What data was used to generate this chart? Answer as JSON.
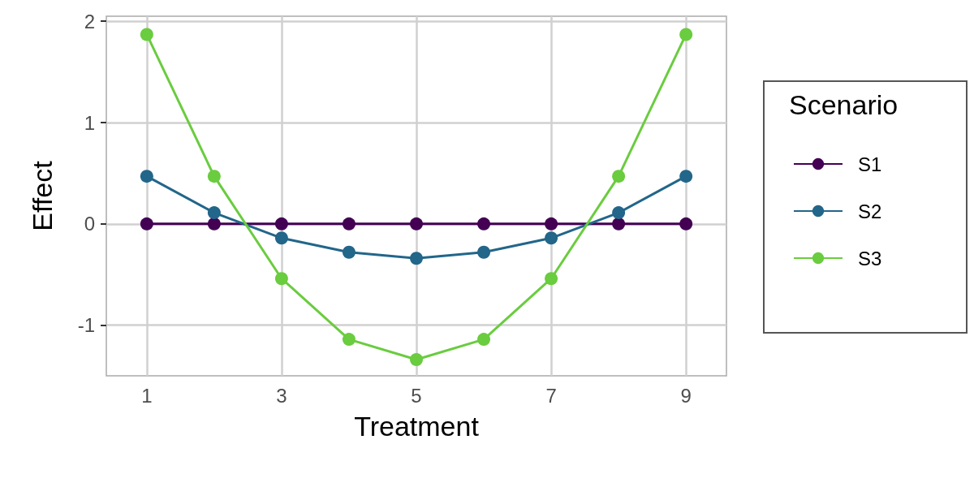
{
  "chart_data": {
    "type": "line",
    "xlabel": "Treatment",
    "ylabel": "Effect",
    "legend_title": "Scenario",
    "legend": "right",
    "grid": true,
    "marker": "circle",
    "line_style": "solid",
    "x": [
      1,
      2,
      3,
      4,
      5,
      6,
      7,
      8,
      9
    ],
    "xlim": [
      0.4,
      9.6
    ],
    "xticks": [
      1,
      3,
      5,
      7,
      9
    ],
    "ylim": [
      -1.5,
      2.05
    ],
    "yticks": [
      -1,
      0,
      1,
      2
    ],
    "series": [
      {
        "name": "S1",
        "color": "#440154",
        "values": [
          0,
          0,
          0,
          0,
          0,
          0,
          0,
          0,
          0
        ]
      },
      {
        "name": "S2",
        "color": "#22668a",
        "values": [
          0.47,
          0.11,
          -0.14,
          -0.28,
          -0.34,
          -0.28,
          -0.14,
          0.11,
          0.47
        ]
      },
      {
        "name": "S3",
        "color": "#6acc3f",
        "values": [
          1.87,
          0.47,
          -0.54,
          -1.14,
          -1.34,
          -1.14,
          -0.54,
          0.47,
          1.87
        ]
      }
    ]
  }
}
